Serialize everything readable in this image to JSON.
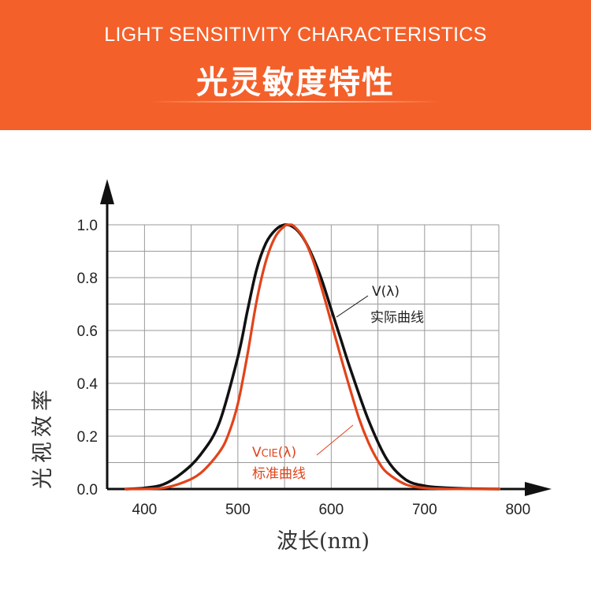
{
  "header": {
    "title_en": "LIGHT SENSITIVITY CHARACTERISTICS",
    "title_cn": "光灵敏度特性"
  },
  "colors": {
    "banner": "#f4602a",
    "actual_curve": "#111111",
    "standard_curve": "#e2431a",
    "grid": "#9a9a9a"
  },
  "chart_data": {
    "type": "line",
    "ylabel": "光视效率",
    "xlabel": "波长(nm)",
    "xlim": [
      360,
      820
    ],
    "ylim": [
      0,
      1.0
    ],
    "x_ticks": [
      400,
      500,
      600,
      700,
      800
    ],
    "x_tick_labels": [
      "400",
      "500",
      "600",
      "700",
      "800"
    ],
    "y_ticks": [
      0,
      0.2,
      0.4,
      0.6,
      0.8,
      1.0
    ],
    "y_tick_labels": [
      "0.0",
      "0.2",
      "0.4",
      "0.6",
      "0.8",
      "1.0"
    ],
    "grid": true,
    "series": [
      {
        "key": "actual",
        "name": "V(λ)",
        "caption": "实际曲线",
        "color": "#111111",
        "x": [
          380,
          400,
          420,
          440,
          460,
          480,
          500,
          510,
          520,
          530,
          540,
          550,
          560,
          570,
          580,
          590,
          600,
          610,
          620,
          640,
          660,
          680,
          700,
          720,
          740,
          760,
          780
        ],
        "y": [
          0.0,
          0.004,
          0.017,
          0.06,
          0.13,
          0.25,
          0.5,
          0.67,
          0.83,
          0.93,
          0.98,
          1.0,
          0.99,
          0.95,
          0.88,
          0.79,
          0.68,
          0.57,
          0.46,
          0.26,
          0.11,
          0.035,
          0.012,
          0.005,
          0.002,
          0.0005,
          0.0
        ]
      },
      {
        "key": "standard",
        "name": "VCIE(λ)",
        "caption": "标准曲线",
        "color": "#e2431a",
        "x": [
          380,
          400,
          420,
          440,
          460,
          480,
          490,
          500,
          510,
          520,
          530,
          540,
          550,
          555,
          560,
          570,
          580,
          590,
          600,
          610,
          620,
          630,
          640,
          650,
          660,
          680,
          700,
          720,
          740,
          760,
          780
        ],
        "y": [
          0.0,
          0.0004,
          0.004,
          0.023,
          0.06,
          0.139,
          0.208,
          0.323,
          0.503,
          0.71,
          0.862,
          0.954,
          0.995,
          1.0,
          0.995,
          0.952,
          0.87,
          0.757,
          0.631,
          0.503,
          0.381,
          0.265,
          0.175,
          0.107,
          0.061,
          0.017,
          0.004,
          0.001,
          0.0003,
          0.0001,
          0.0
        ]
      }
    ]
  },
  "annotations": {
    "actual_symbol": "V(λ)",
    "actual_caption": "实际曲线",
    "standard_symbol_main": "V",
    "standard_symbol_sub": "CIE",
    "standard_symbol_tail": "(λ)",
    "standard_caption": "标准曲线"
  }
}
